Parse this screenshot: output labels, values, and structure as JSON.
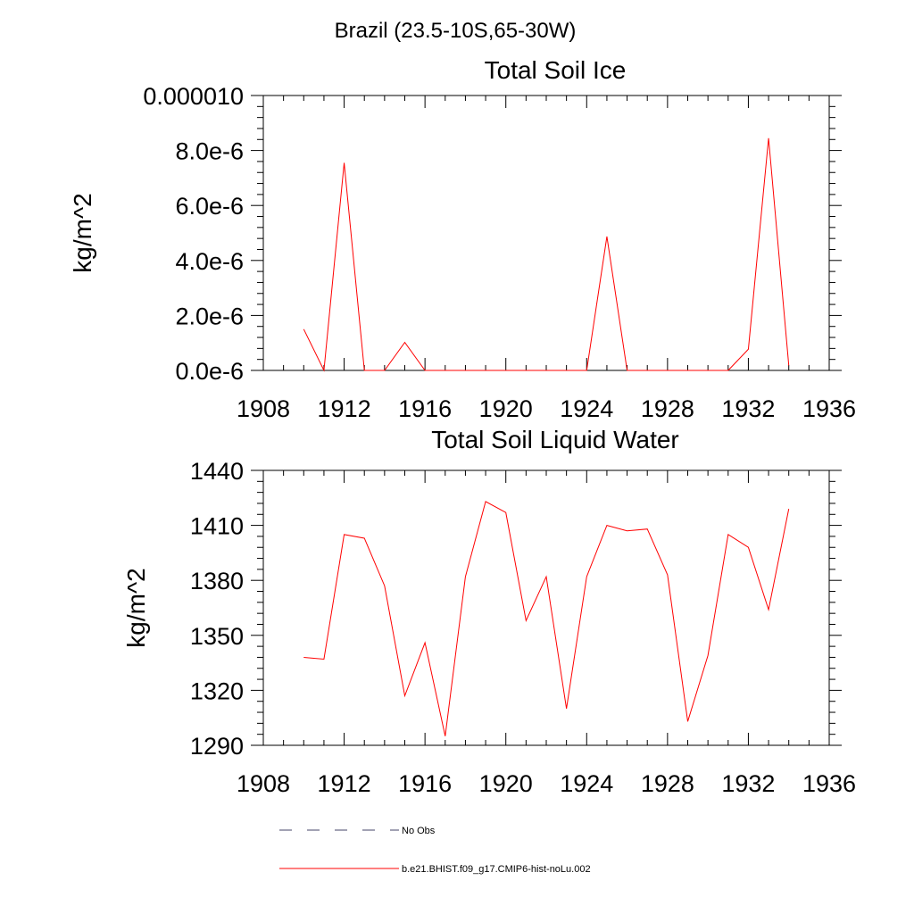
{
  "figure": {
    "suptitle": "Brazil (23.5-10S,65-30W)"
  },
  "chart_data": [
    {
      "type": "line",
      "title": "Total Soil Ice",
      "xlabel": "",
      "ylabel": "kg/m^2",
      "xlim": [
        1908,
        1936
      ],
      "ylim": [
        0,
        1e-05
      ],
      "xticks": [
        1908,
        1912,
        1916,
        1920,
        1924,
        1928,
        1932,
        1936
      ],
      "xtick_labels": [
        "1908",
        "1912",
        "1916",
        "1920",
        "1924",
        "1928",
        "1932",
        "1936"
      ],
      "yticks": [
        0,
        2e-06,
        4e-06,
        6e-06,
        8e-06,
        1e-05
      ],
      "ytick_labels": [
        "0.0e-6",
        "2.0e-6",
        "4.0e-6",
        "6.0e-6",
        "8.0e-6",
        "0.000010"
      ],
      "grid": false,
      "x": [
        1910,
        1911,
        1912,
        1913,
        1914,
        1915,
        1916,
        1917,
        1918,
        1919,
        1920,
        1921,
        1922,
        1923,
        1924,
        1925,
        1926,
        1927,
        1928,
        1929,
        1930,
        1931,
        1932,
        1933,
        1934
      ],
      "series": [
        {
          "name": "b.e21.BHIST.f09_g17.CMIP6-hist-noLu.002",
          "color": "#ff0000",
          "values": [
            1.5e-06,
            0,
            7.55e-06,
            0,
            0,
            1.02e-06,
            0,
            0,
            0,
            0,
            0,
            0,
            0,
            0,
            0,
            4.87e-06,
            0,
            0,
            0,
            0,
            0,
            0,
            7.7e-07,
            8.45e-06,
            1.8e-07
          ]
        }
      ]
    },
    {
      "type": "line",
      "title": "Total Soil Liquid Water",
      "xlabel": "",
      "ylabel": "kg/m^2",
      "xlim": [
        1908,
        1936
      ],
      "ylim": [
        1290,
        1440
      ],
      "xticks": [
        1908,
        1912,
        1916,
        1920,
        1924,
        1928,
        1932,
        1936
      ],
      "xtick_labels": [
        "1908",
        "1912",
        "1916",
        "1920",
        "1924",
        "1928",
        "1932",
        "1936"
      ],
      "yticks": [
        1290,
        1320,
        1350,
        1380,
        1410,
        1440
      ],
      "ytick_labels": [
        "1290",
        "1320",
        "1350",
        "1380",
        "1410",
        "1440"
      ],
      "grid": false,
      "x": [
        1910,
        1911,
        1912,
        1913,
        1914,
        1915,
        1916,
        1917,
        1918,
        1919,
        1920,
        1921,
        1922,
        1923,
        1924,
        1925,
        1926,
        1927,
        1928,
        1929,
        1930,
        1931,
        1932,
        1933,
        1934
      ],
      "series": [
        {
          "name": "b.e21.BHIST.f09_g17.CMIP6-hist-noLu.002",
          "color": "#ff0000",
          "values": [
            1338,
            1337,
            1405,
            1403,
            1377,
            1317,
            1346,
            1295,
            1382,
            1423,
            1417,
            1358,
            1382,
            1310,
            1382,
            1410,
            1407,
            1408,
            1383,
            1303,
            1339,
            1405,
            1398,
            1364,
            1419
          ]
        }
      ]
    }
  ],
  "legend": {
    "placement": "bottom",
    "items": [
      {
        "label": "No Obs",
        "color": "#44446a",
        "style": "dashed"
      },
      {
        "label": "b.e21.BHIST.f09_g17.CMIP6-hist-noLu.002",
        "color": "#ff0000",
        "style": "solid"
      }
    ]
  }
}
